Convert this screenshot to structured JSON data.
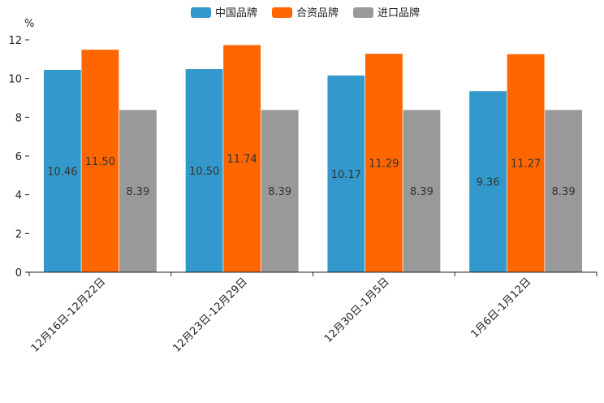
{
  "chart_data": {
    "type": "bar",
    "title": "",
    "xlabel": "",
    "ylabel": "%",
    "ylim": [
      0,
      12
    ],
    "yticks": [
      0,
      2,
      4,
      6,
      8,
      10,
      12
    ],
    "grid": false,
    "legend_position": "top-center",
    "categories": [
      "12月16日-12月22日",
      "12月23日-12月29日",
      "12月30日-1月5日",
      "1月6日-1月12日"
    ],
    "series": [
      {
        "name": "中国品牌",
        "color": "#3399cc",
        "values": [
          10.46,
          10.5,
          10.17,
          9.36
        ],
        "labels": [
          "10.46",
          "10.50",
          "10.17",
          "9.36"
        ]
      },
      {
        "name": "合资品牌",
        "color": "#ff6600",
        "values": [
          11.5,
          11.74,
          11.29,
          11.27
        ],
        "labels": [
          "11.50",
          "11.74",
          "11.29",
          "11.27"
        ]
      },
      {
        "name": "进口品牌",
        "color": "#999999",
        "values": [
          8.39,
          8.39,
          8.39,
          8.39
        ],
        "labels": [
          "8.39",
          "8.39",
          "8.39",
          "8.39"
        ]
      }
    ]
  }
}
